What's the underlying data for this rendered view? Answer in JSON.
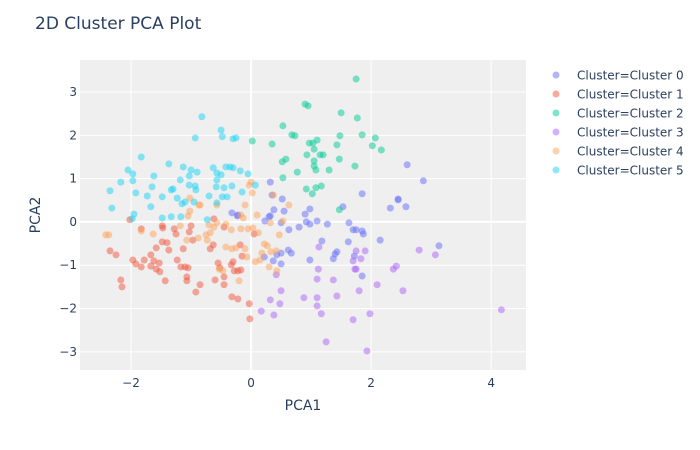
{
  "chart_data": {
    "type": "scatter",
    "title": "2D Cluster PCA Plot",
    "xlabel": "PCA1",
    "ylabel": "PCA2",
    "xlim": [
      -2.85,
      4.58
    ],
    "ylim": [
      -3.42,
      3.74
    ],
    "xticks": [
      {
        "v": -2,
        "label": "−2"
      },
      {
        "v": 0,
        "label": "0"
      },
      {
        "v": 2,
        "label": "2"
      },
      {
        "v": 4,
        "label": "4"
      }
    ],
    "yticks": [
      {
        "v": -3,
        "label": "−3"
      },
      {
        "v": -2,
        "label": "−2"
      },
      {
        "v": -1,
        "label": "−1"
      },
      {
        "v": 0,
        "label": "0"
      },
      {
        "v": 1,
        "label": "1"
      },
      {
        "v": 2,
        "label": "2"
      },
      {
        "v": 3,
        "label": "3"
      }
    ],
    "grid": true,
    "legend_position": "right",
    "marker_opacity": 0.5,
    "series": [
      {
        "name": "Cluster=Cluster 0",
        "color": "#636efa",
        "points": [
          [
            0.38,
            0.28
          ],
          [
            0.55,
            0.25
          ],
          [
            0.32,
            0.14
          ],
          [
            0.23,
            0.02
          ],
          [
            0.5,
            -0.02
          ],
          [
            0.63,
            -0.18
          ],
          [
            0.8,
            -0.12
          ],
          [
            0.9,
            0.18
          ],
          [
            0.98,
            0.3
          ],
          [
            0.92,
            0
          ],
          [
            0.98,
            -0.05
          ],
          [
            1.1,
            0.02
          ],
          [
            1.27,
            -0.05
          ],
          [
            1.53,
            0.35
          ],
          [
            1.63,
            -0.02
          ],
          [
            1.7,
            -0.18
          ],
          [
            1.75,
            -0.18
          ],
          [
            1.85,
            -0.21
          ],
          [
            1.87,
            -0.28
          ],
          [
            2.15,
            -0.42
          ],
          [
            2.32,
            0.32
          ],
          [
            2.45,
            0.51
          ],
          [
            2.58,
            0.35
          ],
          [
            3.13,
            -0.55
          ],
          [
            1.18,
            -0.44
          ],
          [
            1.62,
            -0.46
          ],
          [
            0.62,
            -0.65
          ],
          [
            0.67,
            -0.72
          ],
          [
            0.5,
            -0.72
          ],
          [
            0.43,
            -0.76
          ],
          [
            0.22,
            -0.81
          ],
          [
            0.37,
            -0.9
          ],
          [
            0.5,
            -0.97
          ],
          [
            0.98,
            -0.88
          ],
          [
            1.4,
            -0.74
          ],
          [
            1.43,
            -0.69
          ],
          [
            1.37,
            -0.85
          ],
          [
            1.72,
            -0.79
          ],
          [
            1.85,
            -1.25
          ],
          [
            0.32,
            0.92
          ],
          [
            0.35,
            0.62
          ],
          [
            0.52,
            0.53
          ],
          [
            1.85,
            0.65
          ],
          [
            2.6,
            1.32
          ],
          [
            2.87,
            0.95
          ],
          [
            2.45,
            0.53
          ],
          [
            -0.32,
            0.21
          ],
          [
            -0.22,
            0.16
          ],
          [
            0.3,
            0.12
          ],
          [
            -0.23,
            0.14
          ]
        ]
      },
      {
        "name": "Cluster=Cluster 1",
        "color": "#EF553B",
        "points": [
          [
            -2.02,
            0.05
          ],
          [
            -1.83,
            -0.16
          ],
          [
            -1.48,
            -0.09
          ],
          [
            -1.47,
            -0.14
          ],
          [
            -1.28,
            -0.16
          ],
          [
            -1.25,
            -0.28
          ],
          [
            -1,
            -0.09
          ],
          [
            -1.03,
            -0.23
          ],
          [
            -0.97,
            -0.42
          ],
          [
            -0.62,
            0.07
          ],
          [
            -0.45,
            -0.12
          ],
          [
            0.05,
            -0.28
          ],
          [
            -2.35,
            -0.67
          ],
          [
            -2.25,
            -0.76
          ],
          [
            -1.97,
            -0.88
          ],
          [
            -1.92,
            -0.97
          ],
          [
            -1.83,
            -1.04
          ],
          [
            -1.78,
            -0.88
          ],
          [
            -1.67,
            -0.76
          ],
          [
            -1.58,
            -0.6
          ],
          [
            -1.48,
            -0.46
          ],
          [
            -1.4,
            -0.48
          ],
          [
            -1.37,
            -0.65
          ],
          [
            -1.62,
            -0.9
          ],
          [
            -1.53,
            -0.95
          ],
          [
            -1.67,
            -1.02
          ],
          [
            -1.58,
            -1.09
          ],
          [
            -1.52,
            -1.15
          ],
          [
            -1.23,
            -0.88
          ],
          [
            -1.13,
            -0.62
          ],
          [
            -1.17,
            -1.04
          ],
          [
            -1.1,
            -1.04
          ],
          [
            -1.05,
            -1.06
          ],
          [
            -1.07,
            -1.27
          ],
          [
            -1.07,
            -1.36
          ],
          [
            -0.85,
            -1.45
          ],
          [
            -0.92,
            -1.62
          ],
          [
            -1.43,
            -1.36
          ],
          [
            -2.17,
            -1.34
          ],
          [
            -2.15,
            -1.5
          ],
          [
            -0.68,
            -0.62
          ],
          [
            -0.63,
            -0.53
          ],
          [
            -0.55,
            -0.95
          ],
          [
            -0.52,
            -1.06
          ],
          [
            -0.6,
            -1.34
          ],
          [
            -0.45,
            -1.27
          ],
          [
            -0.45,
            -1.45
          ],
          [
            -0.33,
            -0.99
          ],
          [
            -0.3,
            -0.92
          ],
          [
            -0.28,
            -1.13
          ],
          [
            -0.22,
            -1.13
          ],
          [
            -0.17,
            -1.11
          ],
          [
            -0.18,
            -0.53
          ],
          [
            -0.15,
            -0.79
          ],
          [
            -0.32,
            -1.73
          ],
          [
            -0.22,
            -1.78
          ],
          [
            -0.03,
            -1.89
          ],
          [
            -0.02,
            -2.24
          ]
        ]
      },
      {
        "name": "Cluster=Cluster 2",
        "color": "#00cc96",
        "points": [
          [
            1.75,
            3.3
          ],
          [
            0.9,
            2.72
          ],
          [
            0.95,
            2.68
          ],
          [
            1.5,
            2.52
          ],
          [
            1.77,
            2.4
          ],
          [
            0.53,
            2.22
          ],
          [
            0.68,
            2.01
          ],
          [
            0.73,
            1.99
          ],
          [
            1.48,
            1.99
          ],
          [
            1.85,
            2.01
          ],
          [
            2.07,
            1.94
          ],
          [
            0.02,
            1.87
          ],
          [
            0.35,
            1.8
          ],
          [
            0.97,
            1.82
          ],
          [
            1.03,
            1.82
          ],
          [
            1.1,
            1.89
          ],
          [
            1.43,
            1.78
          ],
          [
            2.02,
            1.76
          ],
          [
            2.17,
            1.66
          ],
          [
            1.05,
            1.68
          ],
          [
            0.93,
            1.55
          ],
          [
            1.15,
            1.55
          ],
          [
            1.2,
            1.55
          ],
          [
            0.58,
            1.45
          ],
          [
            0.52,
            1.39
          ],
          [
            1.47,
            1.45
          ],
          [
            1.05,
            1.41
          ],
          [
            1.05,
            1.29
          ],
          [
            1.08,
            1.2
          ],
          [
            1.3,
            1.2
          ],
          [
            1.73,
            1.29
          ],
          [
            0.77,
            1.15
          ],
          [
            0.53,
            1.02
          ],
          [
            0.92,
            0.76
          ],
          [
            1.08,
            0.79
          ],
          [
            1.17,
            0.83
          ],
          [
            1.02,
            0.65
          ],
          [
            1.47,
            0.28
          ]
        ]
      },
      {
        "name": "Cluster=Cluster 3",
        "color": "#ab63fa",
        "points": [
          [
            1.13,
            -0.58
          ],
          [
            1.75,
            -0.67
          ],
          [
            1.9,
            -0.67
          ],
          [
            1.83,
            -0.85
          ],
          [
            1.7,
            -0.9
          ],
          [
            1.73,
            -1.09
          ],
          [
            1.75,
            -1.09
          ],
          [
            1.12,
            -1.09
          ],
          [
            1.1,
            -1.32
          ],
          [
            1.37,
            -1.34
          ],
          [
            0.42,
            -1.22
          ],
          [
            0.5,
            -1.59
          ],
          [
            0.32,
            -1.8
          ],
          [
            0.48,
            -1.89
          ],
          [
            0.17,
            -2.06
          ],
          [
            0.38,
            -2.15
          ],
          [
            0.88,
            -1.75
          ],
          [
            1.1,
            -1.75
          ],
          [
            1.1,
            -1.94
          ],
          [
            1.17,
            -2.12
          ],
          [
            1.43,
            -1.71
          ],
          [
            1.8,
            -1.59
          ],
          [
            2.1,
            -1.45
          ],
          [
            1.98,
            -2.12
          ],
          [
            1.7,
            -2.26
          ],
          [
            1.25,
            -2.77
          ],
          [
            1.93,
            -2.98
          ],
          [
            2.37,
            -1.09
          ],
          [
            2.42,
            -1.02
          ],
          [
            2.53,
            -1.59
          ],
          [
            2.8,
            -0.65
          ],
          [
            3.07,
            -0.76
          ],
          [
            4.17,
            -2.03
          ]
        ]
      },
      {
        "name": "Cluster=Cluster 4",
        "color": "#FFA15A",
        "points": [
          [
            -2.42,
            -0.3
          ],
          [
            -2.37,
            -0.3
          ],
          [
            -1.83,
            -0.21
          ],
          [
            -1.63,
            -0.28
          ],
          [
            -1.18,
            -0.09
          ],
          [
            -1.05,
            0.14
          ],
          [
            -1.02,
            0.25
          ],
          [
            -0.87,
            0.39
          ],
          [
            -0.57,
            0.39
          ],
          [
            -0.1,
            0.39
          ],
          [
            0.63,
            0.39
          ],
          [
            0.1,
            0.16
          ],
          [
            -0.17,
            0.16
          ],
          [
            -0.13,
            0.09
          ],
          [
            -0.57,
            -0.02
          ],
          [
            -0.7,
            -0.07
          ],
          [
            -0.62,
            -0.12
          ],
          [
            -0.42,
            -0.05
          ],
          [
            -0.75,
            -0.3
          ],
          [
            -0.68,
            -0.25
          ],
          [
            -0.88,
            -0.37
          ],
          [
            -1.07,
            -0.42
          ],
          [
            -0.73,
            -0.42
          ],
          [
            -0.33,
            -0.18
          ],
          [
            -0.17,
            -0.16
          ],
          [
            -0.05,
            -0.16
          ],
          [
            0.03,
            -0.14
          ],
          [
            0.12,
            -0.25
          ],
          [
            0.47,
            -0.3
          ],
          [
            0.32,
            -0.02
          ],
          [
            0.53,
            0.02
          ],
          [
            -0.42,
            -0.58
          ],
          [
            -0.32,
            -0.62
          ],
          [
            -0.25,
            -0.6
          ],
          [
            -0.1,
            -0.62
          ],
          [
            0.22,
            -0.51
          ],
          [
            0.27,
            -0.55
          ],
          [
            0.18,
            -0.72
          ],
          [
            0.33,
            -0.69
          ],
          [
            0.42,
            -0.67
          ],
          [
            -0.07,
            -0.81
          ],
          [
            0.07,
            -0.92
          ],
          [
            0.15,
            -0.88
          ],
          [
            0.3,
            -1.04
          ],
          [
            0.43,
            -1.13
          ],
          [
            -0.53,
            -1.09
          ],
          [
            -0.47,
            -1.13
          ],
          [
            -0.2,
            -1.36
          ],
          [
            0,
            0.92
          ],
          [
            -0.03,
            0.85
          ],
          [
            0.02,
            0.67
          ],
          [
            -0.85,
            0.39
          ],
          [
            -1.02,
            0.55
          ],
          [
            0.37,
            0.62
          ]
        ]
      },
      {
        "name": "Cluster=Cluster 5",
        "color": "#19d3f3",
        "points": [
          [
            -0.82,
            2.43
          ],
          [
            -0.5,
            2.12
          ],
          [
            -0.48,
            1.97
          ],
          [
            -0.93,
            1.94
          ],
          [
            -0.3,
            1.92
          ],
          [
            -0.25,
            1.94
          ],
          [
            -1.83,
            1.5
          ],
          [
            -1.37,
            1.34
          ],
          [
            -2.05,
            1.2
          ],
          [
            -1.97,
            1.11
          ],
          [
            -1.13,
            1.27
          ],
          [
            -1,
            1.2
          ],
          [
            -0.9,
            1.15
          ],
          [
            -0.63,
            1.25
          ],
          [
            -0.42,
            1.27
          ],
          [
            -0.35,
            1.27
          ],
          [
            -0.3,
            1.25
          ],
          [
            -0.18,
            1.18
          ],
          [
            -0.05,
            1.11
          ],
          [
            -0.57,
            1.13
          ],
          [
            -0.5,
            1.09
          ],
          [
            -1.03,
            1.06
          ],
          [
            -1.62,
            1.06
          ],
          [
            -1.97,
            0.95
          ],
          [
            -2.17,
            0.92
          ],
          [
            -1.18,
            0.97
          ],
          [
            -0.57,
            0.97
          ],
          [
            -2.35,
            0.72
          ],
          [
            -1.92,
            0.67
          ],
          [
            -1.65,
            0.81
          ],
          [
            -1.33,
            0.74
          ],
          [
            -1.3,
            0.76
          ],
          [
            -1.03,
            0.85
          ],
          [
            -0.93,
            0.83
          ],
          [
            -0.92,
            0.74
          ],
          [
            -0.58,
            0.81
          ],
          [
            -0.45,
            0.79
          ],
          [
            -0.32,
            0.83
          ],
          [
            0.07,
            0.85
          ],
          [
            -0.15,
            0.69
          ],
          [
            -1.73,
            0.6
          ],
          [
            -1.48,
            0.58
          ],
          [
            -1.23,
            0.55
          ],
          [
            -0.7,
            0.6
          ],
          [
            -0.48,
            0.58
          ],
          [
            -0.4,
            0.58
          ],
          [
            -2.32,
            0.32
          ],
          [
            -1.67,
            0.35
          ],
          [
            -1.15,
            0.42
          ],
          [
            -1.1,
            0.46
          ],
          [
            -0.95,
            0.46
          ],
          [
            -0.57,
            0.44
          ],
          [
            -1.95,
            0.18
          ],
          [
            -1.48,
            0.09
          ],
          [
            -1.33,
            0.12
          ],
          [
            -1.17,
            0.12
          ],
          [
            -0.73,
            0.05
          ],
          [
            -1.98,
            0.07
          ]
        ]
      }
    ]
  }
}
